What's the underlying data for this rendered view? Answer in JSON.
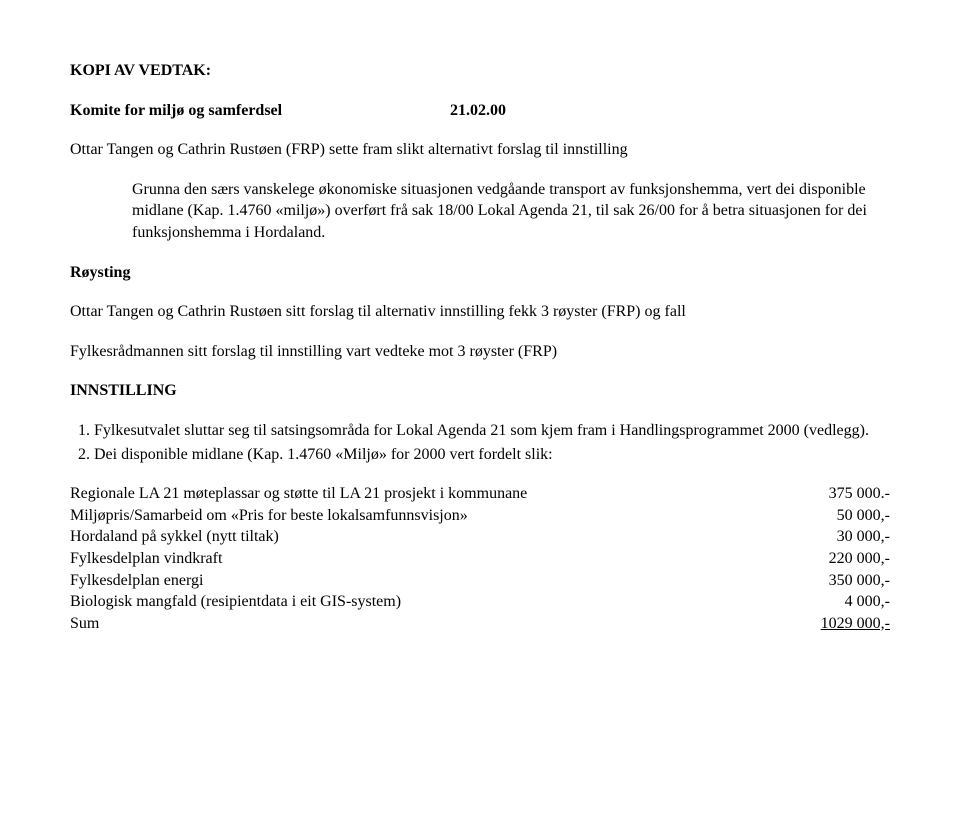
{
  "heading1": "KOPI AV VEDTAK:",
  "committee": {
    "label": "Komite for miljø og samferdsel",
    "date": "21.02.00"
  },
  "intro": "Ottar Tangen og Cathrin Rustøen (FRP) sette fram slikt alternativt forslag til innstilling",
  "indent1": "Grunna den særs vanskelege økonomiske situasjonen vedgåande transport av funksjonshemma, vert dei disponible midlane (Kap. 1.4760 «miljø») overført frå sak 18/00 Lokal Agenda 21, til sak 26/00 for å betra situasjonen for dei funksjonshemma i Hordaland.",
  "voting_heading": "Røysting",
  "voting_p1": "Ottar Tangen og Cathrin Rustøen sitt forslag til alternativ innstilling fekk 3 røyster (FRP) og fall",
  "voting_p2": "Fylkesrådmannen sitt forslag til innstilling vart vedteke mot 3 røyster (FRP)",
  "innstilling_heading": "INNSTILLING",
  "list": {
    "item1": "Fylkesutvalet sluttar seg til satsingsområda for Lokal Agenda 21 som kjem fram i Handlingsprogrammet 2000 (vedlegg).",
    "item2": "Dei disponible midlane (Kap. 1.4760 «Miljø» for 2000 vert fordelt slik:"
  },
  "allocations": [
    {
      "desc": "Regionale LA 21 møteplassar og støtte til LA 21 prosjekt i kommunane",
      "amt": "375 000.-"
    },
    {
      "desc": "Miljøpris/Samarbeid om «Pris for beste lokalsamfunnsvisjon»",
      "amt": "50 000,-"
    },
    {
      "desc": "Hordaland på sykkel (nytt tiltak)",
      "amt": "30 000,-"
    },
    {
      "desc": "Fylkesdelplan vindkraft",
      "amt": "220 000,-"
    },
    {
      "desc": "Fylkesdelplan energi",
      "amt": "350 000,-"
    },
    {
      "desc": "Biologisk mangfald (resipientdata i eit GIS-system)",
      "amt": "4 000,-"
    }
  ],
  "sum": {
    "desc": "Sum",
    "amt": "1029 000,-"
  }
}
